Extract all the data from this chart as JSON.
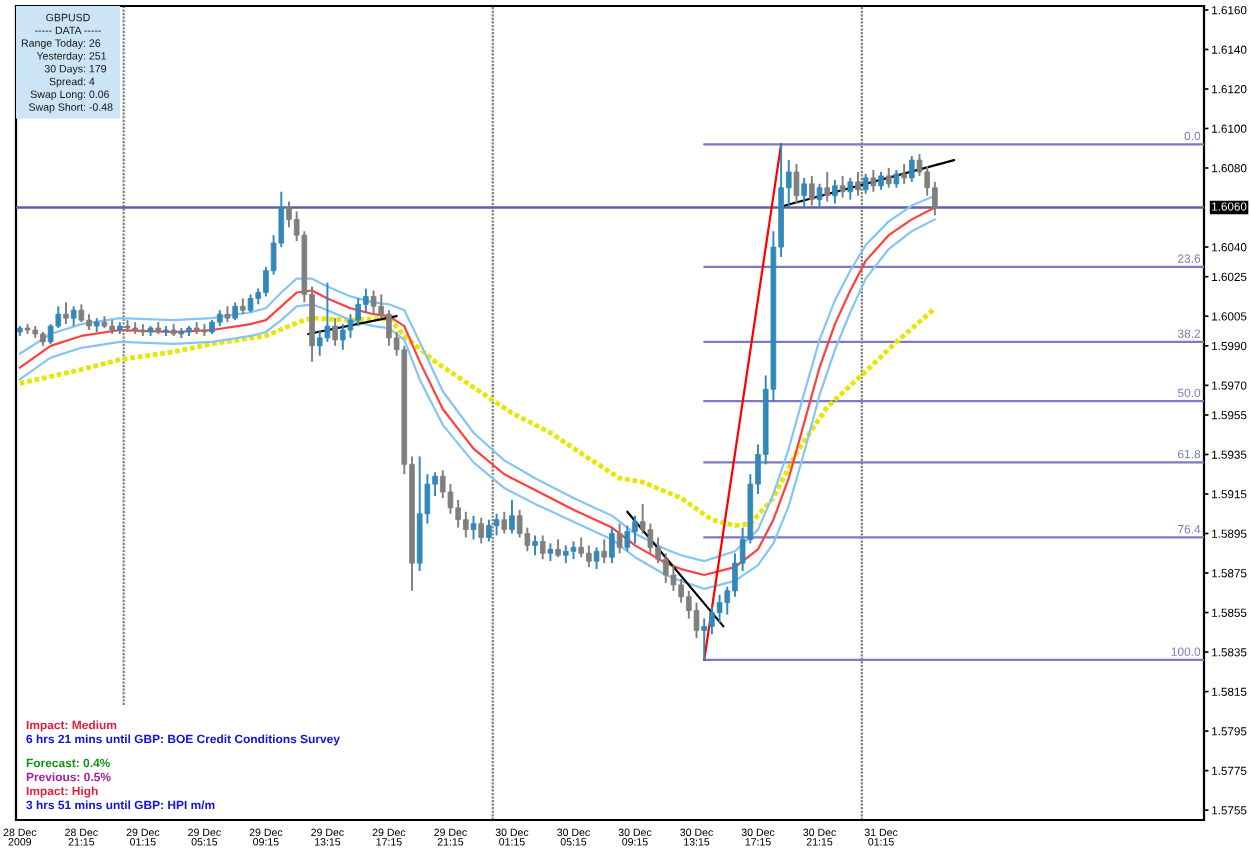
{
  "chart_data": {
    "type": "candlestick",
    "title": "GBPUSD",
    "annotations": [
      "----- DATA -----",
      "Range Today: 26",
      "Yesterday: 251",
      "30 Days: 179",
      "Spread: 4",
      "Swap Long: 0.06",
      "Swap Short: -0.48",
      "Impact: Medium",
      "6 hrs 21 mins until GBP: BOE Credit Conditions Survey",
      "Forecast: 0.4%",
      "Previous: 0.5%",
      "Impact: High",
      "3 hrs 51 mins until GBP: HPI m/m"
    ],
    "xlim": [
      "2009-12-28T17:00",
      "2009-12-31T22:15"
    ],
    "xticks": [
      {
        "value": "2009-12-28T17:15",
        "label": "28 Dec 2009"
      },
      {
        "value": "2009-12-28T21:15",
        "label": "28 Dec 21:15"
      },
      {
        "value": "2009-12-29T01:15",
        "label": "29 Dec 01:15"
      },
      {
        "value": "2009-12-29T05:15",
        "label": "29 Dec 05:15"
      },
      {
        "value": "2009-12-29T09:15",
        "label": "29 Dec 09:15"
      },
      {
        "value": "2009-12-29T13:15",
        "label": "29 Dec 13:15"
      },
      {
        "value": "2009-12-29T17:15",
        "label": "29 Dec 17:15"
      },
      {
        "value": "2009-12-29T21:15",
        "label": "29 Dec 21:15"
      },
      {
        "value": "2009-12-30T01:15",
        "label": "30 Dec 01:15"
      },
      {
        "value": "2009-12-30T05:15",
        "label": "30 Dec 05:15"
      },
      {
        "value": "2009-12-30T09:15",
        "label": "30 Dec 09:15"
      },
      {
        "value": "2009-12-30T13:15",
        "label": "30 Dec 13:15"
      },
      {
        "value": "2009-12-30T17:15",
        "label": "30 Dec 17:15"
      },
      {
        "value": "2009-12-30T21:15",
        "label": "30 Dec 21:15"
      },
      {
        "value": "2009-12-31T01:15",
        "label": "31 Dec 01:15"
      }
    ],
    "ylim": [
      1.575,
      1.6162
    ],
    "yticks": [
      {
        "value": 1.616,
        "label": "1.6160"
      },
      {
        "value": 1.614,
        "label": "1.6140"
      },
      {
        "value": 1.612,
        "label": "1.6120"
      },
      {
        "value": 1.61,
        "label": "1.6100"
      },
      {
        "value": 1.608,
        "label": "1.6080"
      },
      {
        "value": 1.604,
        "label": "1.6040"
      },
      1.6025,
      1.6005,
      {
        "value": 1.599,
        "label": "1.5990"
      },
      {
        "value": 1.597,
        "label": "1.5970"
      },
      1.5955,
      1.5935,
      1.5915,
      1.5895,
      1.5875,
      1.5855,
      1.5835,
      1.5815,
      1.5795,
      1.5775,
      1.5755
    ],
    "ref_lines": [
      {
        "axis": "y",
        "value": 1.606,
        "label": "1.6060",
        "color": "#60609c"
      },
      {
        "axis": "x",
        "value": "2009-12-29T00:00",
        "color": "#808080",
        "line_style": "dotted"
      },
      {
        "axis": "x",
        "value": "2009-12-30T00:00",
        "color": "#808080",
        "line_style": "dotted"
      },
      {
        "axis": "x",
        "value": "2009-12-31T00:00",
        "color": "#808080",
        "line_style": "dotted"
      }
    ],
    "x": [
      "2009-12-28T17:15",
      "2009-12-28T17:45",
      "2009-12-28T18:15",
      "2009-12-28T18:45",
      "2009-12-28T19:15",
      "2009-12-28T19:45",
      "2009-12-28T20:15",
      "2009-12-28T20:45",
      "2009-12-28T21:15",
      "2009-12-28T21:45",
      "2009-12-28T22:15",
      "2009-12-28T22:45",
      "2009-12-28T23:15",
      "2009-12-28T23:45",
      "2009-12-29T00:15",
      "2009-12-29T00:45",
      "2009-12-29T01:15",
      "2009-12-29T01:45",
      "2009-12-29T02:15",
      "2009-12-29T02:45",
      "2009-12-29T03:15",
      "2009-12-29T03:45",
      "2009-12-29T04:15",
      "2009-12-29T04:45",
      "2009-12-29T05:15",
      "2009-12-29T05:45",
      "2009-12-29T06:15",
      "2009-12-29T06:45",
      "2009-12-29T07:15",
      "2009-12-29T07:45",
      "2009-12-29T08:15",
      "2009-12-29T08:45",
      "2009-12-29T09:15",
      "2009-12-29T09:45",
      "2009-12-29T10:15",
      "2009-12-29T10:45",
      "2009-12-29T11:15",
      "2009-12-29T11:45",
      "2009-12-29T12:15",
      "2009-12-29T12:45",
      "2009-12-29T13:15",
      "2009-12-29T13:45",
      "2009-12-29T14:15",
      "2009-12-29T14:45",
      "2009-12-29T15:15",
      "2009-12-29T15:45",
      "2009-12-29T16:15",
      "2009-12-29T16:45",
      "2009-12-29T17:15",
      "2009-12-29T17:45",
      "2009-12-29T18:15",
      "2009-12-29T18:45",
      "2009-12-29T19:15",
      "2009-12-29T19:45",
      "2009-12-29T20:15",
      "2009-12-29T20:45",
      "2009-12-29T21:15",
      "2009-12-29T21:45",
      "2009-12-29T22:15",
      "2009-12-29T22:45",
      "2009-12-29T23:15",
      "2009-12-29T23:45",
      "2009-12-30T00:15",
      "2009-12-30T00:45",
      "2009-12-30T01:15",
      "2009-12-30T01:45",
      "2009-12-30T02:15",
      "2009-12-30T02:45",
      "2009-12-30T03:15",
      "2009-12-30T03:45",
      "2009-12-30T04:15",
      "2009-12-30T04:45",
      "2009-12-30T05:15",
      "2009-12-30T05:45",
      "2009-12-30T06:15",
      "2009-12-30T06:45",
      "2009-12-30T07:15",
      "2009-12-30T07:45",
      "2009-12-30T08:15",
      "2009-12-30T08:45",
      "2009-12-30T09:15",
      "2009-12-30T09:45",
      "2009-12-30T10:15",
      "2009-12-30T10:45",
      "2009-12-30T11:15",
      "2009-12-30T11:45",
      "2009-12-30T12:15",
      "2009-12-30T12:45",
      "2009-12-30T13:15",
      "2009-12-30T13:45",
      "2009-12-30T14:15",
      "2009-12-30T14:45",
      "2009-12-30T15:15",
      "2009-12-30T15:45",
      "2009-12-30T16:15",
      "2009-12-30T16:45",
      "2009-12-30T17:15",
      "2009-12-30T17:45",
      "2009-12-30T18:15",
      "2009-12-30T18:45",
      "2009-12-30T19:15",
      "2009-12-30T19:45",
      "2009-12-30T20:15",
      "2009-12-30T20:45",
      "2009-12-30T21:15",
      "2009-12-30T21:45",
      "2009-12-30T22:15",
      "2009-12-30T22:45",
      "2009-12-30T23:15",
      "2009-12-30T23:45",
      "2009-12-31T00:15",
      "2009-12-31T00:45",
      "2009-12-31T01:15",
      "2009-12-31T01:45",
      "2009-12-31T02:15",
      "2009-12-31T02:45",
      "2009-12-31T03:15",
      "2009-12-31T03:45",
      "2009-12-31T04:15",
      "2009-12-31T04:45"
    ],
    "ohlc": [
      [
        1.5997,
        1.6,
        1.5995,
        1.5999
      ],
      [
        1.5999,
        1.6001,
        1.5996,
        1.5998
      ],
      [
        1.5998,
        1.6,
        1.5994,
        1.5996
      ],
      [
        1.5996,
        1.5997,
        1.599,
        1.5992
      ],
      [
        1.5992,
        1.6001,
        1.5991,
        1.6
      ],
      [
        1.6,
        1.601,
        1.5999,
        1.6006
      ],
      [
        1.6006,
        1.6012,
        1.6001,
        1.6004
      ],
      [
        1.6004,
        1.601,
        1.6,
        1.6008
      ],
      [
        1.6008,
        1.6011,
        1.6002,
        1.6003
      ],
      [
        1.6003,
        1.6006,
        1.5998,
        1.6
      ],
      [
        1.6,
        1.6004,
        1.5997,
        1.6002
      ],
      [
        1.6002,
        1.6005,
        1.5999,
        1.6
      ],
      [
        1.6,
        1.6003,
        1.5996,
        1.5998
      ],
      [
        1.5998,
        1.6002,
        1.5996,
        1.6
      ],
      [
        1.6,
        1.6003,
        1.5997,
        1.5999
      ],
      [
        1.5999,
        1.6002,
        1.5996,
        1.5998
      ],
      [
        1.5998,
        1.6001,
        1.5995,
        1.5997
      ],
      [
        1.5997,
        1.6,
        1.5995,
        1.5999
      ],
      [
        1.5999,
        1.6002,
        1.5996,
        1.5997
      ],
      [
        1.5997,
        1.6,
        1.5995,
        1.5998
      ],
      [
        1.5998,
        1.6001,
        1.5995,
        1.5996
      ],
      [
        1.5996,
        1.5999,
        1.5994,
        1.5997
      ],
      [
        1.5997,
        1.6,
        1.5995,
        1.5999
      ],
      [
        1.5999,
        1.6002,
        1.5996,
        1.5998
      ],
      [
        1.5998,
        1.6001,
        1.5995,
        1.5997
      ],
      [
        1.5997,
        1.6003,
        1.5996,
        1.6002
      ],
      [
        1.6002,
        1.6008,
        1.6,
        1.6006
      ],
      [
        1.6006,
        1.601,
        1.6002,
        1.6004
      ],
      [
        1.6004,
        1.6012,
        1.6003,
        1.601
      ],
      [
        1.601,
        1.6014,
        1.6006,
        1.6008
      ],
      [
        1.6008,
        1.6016,
        1.6007,
        1.6014
      ],
      [
        1.6014,
        1.6019,
        1.6011,
        1.6017
      ],
      [
        1.6017,
        1.603,
        1.6015,
        1.6028
      ],
      [
        1.6028,
        1.6046,
        1.6026,
        1.6042
      ],
      [
        1.6042,
        1.6068,
        1.604,
        1.606
      ],
      [
        1.606,
        1.6063,
        1.605,
        1.6054
      ],
      [
        1.6054,
        1.6058,
        1.6043,
        1.6046
      ],
      [
        1.6046,
        1.6048,
        1.6012,
        1.6016
      ],
      [
        1.6016,
        1.602,
        1.5982,
        1.599
      ],
      [
        1.599,
        1.5998,
        1.5985,
        1.5994
      ],
      [
        1.5994,
        1.6022,
        1.5992,
        1.6
      ],
      [
        1.6,
        1.6004,
        1.599,
        1.5993
      ],
      [
        1.5993,
        1.6001,
        1.5988,
        1.5998
      ],
      [
        1.5998,
        1.6006,
        1.5994,
        1.6003
      ],
      [
        1.6003,
        1.6014,
        1.6,
        1.6011
      ],
      [
        1.6011,
        1.6019,
        1.6007,
        1.6015
      ],
      [
        1.6015,
        1.6018,
        1.6006,
        1.601
      ],
      [
        1.601,
        1.6016,
        1.6004,
        1.6006
      ],
      [
        1.6006,
        1.6008,
        1.599,
        1.5994
      ],
      [
        1.5994,
        1.5997,
        1.5985,
        1.5988
      ],
      [
        1.5988,
        1.599,
        1.5925,
        1.593
      ],
      [
        1.593,
        1.5934,
        1.5866,
        1.588
      ],
      [
        1.588,
        1.5934,
        1.5876,
        1.5905
      ],
      [
        1.5905,
        1.5925,
        1.59,
        1.592
      ],
      [
        1.592,
        1.5926,
        1.5914,
        1.5924
      ],
      [
        1.5924,
        1.5927,
        1.5913,
        1.5916
      ],
      [
        1.5916,
        1.592,
        1.5905,
        1.5908
      ],
      [
        1.5908,
        1.5912,
        1.5898,
        1.5902
      ],
      [
        1.5902,
        1.5906,
        1.5893,
        1.5897
      ],
      [
        1.5897,
        1.5904,
        1.5892,
        1.59
      ],
      [
        1.59,
        1.5903,
        1.589,
        1.5893
      ],
      [
        1.5893,
        1.5902,
        1.5891,
        1.5899
      ],
      [
        1.5899,
        1.5905,
        1.5894,
        1.5902
      ],
      [
        1.5902,
        1.5906,
        1.5895,
        1.5897
      ],
      [
        1.5897,
        1.5912,
        1.5895,
        1.5904
      ],
      [
        1.5904,
        1.5907,
        1.5893,
        1.5895
      ],
      [
        1.5895,
        1.5898,
        1.5886,
        1.5889
      ],
      [
        1.5889,
        1.5894,
        1.5884,
        1.5891
      ],
      [
        1.5891,
        1.5894,
        1.5882,
        1.5885
      ],
      [
        1.5885,
        1.589,
        1.5881,
        1.5887
      ],
      [
        1.5887,
        1.5892,
        1.5883,
        1.5884
      ],
      [
        1.5884,
        1.5889,
        1.588,
        1.5886
      ],
      [
        1.5886,
        1.5891,
        1.5882,
        1.5888
      ],
      [
        1.5888,
        1.5893,
        1.5883,
        1.5885
      ],
      [
        1.5885,
        1.5889,
        1.5878,
        1.5881
      ],
      [
        1.5881,
        1.5888,
        1.5877,
        1.5886
      ],
      [
        1.5886,
        1.5892,
        1.588,
        1.5883
      ],
      [
        1.5883,
        1.5898,
        1.588,
        1.5895
      ],
      [
        1.5895,
        1.59,
        1.5885,
        1.5888
      ],
      [
        1.5888,
        1.5899,
        1.5886,
        1.5896
      ],
      [
        1.5896,
        1.5904,
        1.589,
        1.5901
      ],
      [
        1.5901,
        1.591,
        1.5895,
        1.5897
      ],
      [
        1.5897,
        1.59,
        1.5885,
        1.5888
      ],
      [
        1.5888,
        1.5893,
        1.588,
        1.5882
      ],
      [
        1.5882,
        1.5885,
        1.587,
        1.5874
      ],
      [
        1.5874,
        1.5879,
        1.5866,
        1.5869
      ],
      [
        1.5869,
        1.5872,
        1.586,
        1.5863
      ],
      [
        1.5863,
        1.5866,
        1.5852,
        1.5856
      ],
      [
        1.5856,
        1.586,
        1.5842,
        1.5846
      ],
      [
        1.5846,
        1.5852,
        1.5831,
        1.5848
      ],
      [
        1.5848,
        1.5858,
        1.5844,
        1.5855
      ],
      [
        1.5855,
        1.5864,
        1.585,
        1.586
      ],
      [
        1.586,
        1.5868,
        1.5854,
        1.5866
      ],
      [
        1.5866,
        1.5885,
        1.5863,
        1.588
      ],
      [
        1.588,
        1.5898,
        1.5876,
        1.5892
      ],
      [
        1.5892,
        1.5925,
        1.589,
        1.592
      ],
      [
        1.592,
        1.594,
        1.5915,
        1.5935
      ],
      [
        1.5935,
        1.5975,
        1.593,
        1.5968
      ],
      [
        1.5968,
        1.6048,
        1.5962,
        1.604
      ],
      [
        1.604,
        1.6092,
        1.6035,
        1.607
      ],
      [
        1.607,
        1.6084,
        1.606,
        1.6078
      ],
      [
        1.6078,
        1.6082,
        1.6062,
        1.6066
      ],
      [
        1.6066,
        1.6075,
        1.606,
        1.6072
      ],
      [
        1.6072,
        1.6076,
        1.6061,
        1.6064
      ],
      [
        1.6064,
        1.6072,
        1.606,
        1.607
      ],
      [
        1.607,
        1.6078,
        1.6063,
        1.6066
      ],
      [
        1.6066,
        1.6074,
        1.6062,
        1.6071
      ],
      [
        1.6071,
        1.6076,
        1.6065,
        1.6068
      ],
      [
        1.6068,
        1.6075,
        1.6064,
        1.6073
      ],
      [
        1.6073,
        1.6078,
        1.6066,
        1.6069
      ],
      [
        1.6069,
        1.6077,
        1.6067,
        1.6075
      ],
      [
        1.6075,
        1.6079,
        1.6068,
        1.6071
      ],
      [
        1.6071,
        1.6078,
        1.6069,
        1.6076
      ],
      [
        1.6076,
        1.608,
        1.607,
        1.6072
      ],
      [
        1.6072,
        1.6079,
        1.607,
        1.6077
      ],
      [
        1.6077,
        1.6082,
        1.6072,
        1.6075
      ],
      [
        1.6075,
        1.6086,
        1.6073,
        1.6084
      ],
      [
        1.6084,
        1.6087,
        1.6076,
        1.6078
      ],
      [
        1.6078,
        1.6081,
        1.6066,
        1.607
      ],
      [
        1.607,
        1.6073,
        1.6056,
        1.606
      ]
    ],
    "colors": [
      "#3288b8",
      "#7f7f7f",
      "#7f7f7f",
      "#7f7f7f",
      "#3288b8",
      "#3288b8",
      "#7f7f7f",
      "#3288b8",
      "#7f7f7f",
      "#7f7f7f",
      "#3288b8",
      "#7f7f7f",
      "#7f7f7f",
      "#3288b8",
      "#7f7f7f",
      "#7f7f7f",
      "#7f7f7f",
      "#3288b8",
      "#7f7f7f",
      "#3288b8",
      "#7f7f7f",
      "#3288b8",
      "#3288b8",
      "#7f7f7f",
      "#7f7f7f",
      "#3288b8",
      "#3288b8",
      "#7f7f7f",
      "#3288b8",
      "#7f7f7f",
      "#3288b8",
      "#3288b8",
      "#3288b8",
      "#3288b8",
      "#3288b8",
      "#7f7f7f",
      "#7f7f7f",
      "#7f7f7f",
      "#7f7f7f",
      "#3288b8",
      "#3288b8",
      "#7f7f7f",
      "#3288b8",
      "#3288b8",
      "#3288b8",
      "#3288b8",
      "#7f7f7f",
      "#7f7f7f",
      "#7f7f7f",
      "#7f7f7f",
      "#7f7f7f",
      "#7f7f7f",
      "#3288b8",
      "#3288b8",
      "#3288b8",
      "#7f7f7f",
      "#7f7f7f",
      "#7f7f7f",
      "#7f7f7f",
      "#3288b8",
      "#7f7f7f",
      "#3288b8",
      "#3288b8",
      "#7f7f7f",
      "#3288b8",
      "#7f7f7f",
      "#7f7f7f",
      "#3288b8",
      "#7f7f7f",
      "#3288b8",
      "#7f7f7f",
      "#3288b8",
      "#3288b8",
      "#7f7f7f",
      "#7f7f7f",
      "#3288b8",
      "#7f7f7f",
      "#3288b8",
      "#7f7f7f",
      "#3288b8",
      "#3288b8",
      "#7f7f7f",
      "#7f7f7f",
      "#7f7f7f",
      "#7f7f7f",
      "#7f7f7f",
      "#7f7f7f",
      "#7f7f7f",
      "#7f7f7f",
      "#3288b8",
      "#3288b8",
      "#3288b8",
      "#3288b8",
      "#3288b8",
      "#3288b8",
      "#3288b8",
      "#3288b8",
      "#3288b8",
      "#3288b8",
      "#3288b8",
      "#3288b8",
      "#7f7f7f",
      "#3288b8",
      "#7f7f7f",
      "#3288b8",
      "#7f7f7f",
      "#3288b8",
      "#7f7f7f",
      "#3288b8",
      "#7f7f7f",
      "#3288b8",
      "#7f7f7f",
      "#3288b8",
      "#7f7f7f",
      "#3288b8",
      "#7f7f7f",
      "#3288b8",
      "#7f7f7f",
      "#7f7f7f",
      "#7f7f7f"
    ],
    "series": [
      {
        "type": "line",
        "name": "0.0",
        "x": [
          "2009-12-30T13:45",
          "2009-12-31T22:15"
        ],
        "values": [
          1.6092,
          1.6092
        ],
        "color": "#7b7bbd"
      },
      {
        "type": "line",
        "name": "23.6",
        "x": [
          "2009-12-30T13:45",
          "2009-12-31T22:15"
        ],
        "values": [
          1.603,
          1.603
        ],
        "color": "#7b7bbd"
      },
      {
        "type": "line",
        "name": "38.2",
        "x": [
          "2009-12-30T13:45",
          "2009-12-31T22:15"
        ],
        "values": [
          1.5992,
          1.5992
        ],
        "color": "#7b7bbd"
      },
      {
        "type": "line",
        "name": "50.0",
        "x": [
          "2009-12-30T13:45",
          "2009-12-31T22:15"
        ],
        "values": [
          1.5962,
          1.5962
        ],
        "color": "#7b7bbd"
      },
      {
        "type": "line",
        "name": "61.8",
        "x": [
          "2009-12-30T13:45",
          "2009-12-31T22:15"
        ],
        "values": [
          1.5931,
          1.5931
        ],
        "color": "#7b7bbd"
      },
      {
        "type": "line",
        "name": "76.4",
        "x": [
          "2009-12-30T13:45",
          "2009-12-31T22:15"
        ],
        "values": [
          1.5893,
          1.5893
        ],
        "color": "#7b7bbd"
      },
      {
        "type": "line",
        "name": "100.0",
        "x": [
          "2009-12-30T13:45",
          "2009-12-31T22:15"
        ],
        "values": [
          1.5831,
          1.5831
        ],
        "color": "#7b7bbd"
      },
      {
        "type": "line",
        "x": [
          "2009-12-28T17:15",
          "2009-12-28T21:15",
          "2009-12-28T23:45",
          "2009-12-29T03:15",
          "2009-12-29T05:45",
          "2009-12-29T09:15",
          "2009-12-29T10:45",
          "2009-12-29T11:45",
          "2009-12-29T12:15",
          "2009-12-29T14:45",
          "2009-12-29T17:15",
          "2009-12-29T18:15",
          "2009-12-29T20:15",
          "2009-12-29T22:45",
          "2009-12-30T01:15",
          "2009-12-30T03:45",
          "2009-12-30T06:15",
          "2009-12-30T08:15",
          "2009-12-30T09:45",
          "2009-12-30T12:15",
          "2009-12-30T14:15",
          "2009-12-30T15:45",
          "2009-12-30T16:45",
          "2009-12-30T18:15",
          "2009-12-30T19:45",
          "2009-12-30T21:45",
          "2009-12-31T00:15",
          "2009-12-31T02:15",
          "2009-12-31T04:45"
        ],
        "values": [
          1.5971,
          1.5978,
          1.5983,
          1.5987,
          1.5991,
          1.5995,
          1.6,
          1.6003,
          1.6004,
          1.6003,
          1.6004,
          1.5995,
          1.5982,
          1.5969,
          1.5956,
          1.5946,
          1.5933,
          1.5923,
          1.5921,
          1.5913,
          1.5902,
          1.5899,
          1.59,
          1.5913,
          1.5936,
          1.5959,
          1.5977,
          1.5992,
          1.6009
        ],
        "color": "#e6e600",
        "line_style": "dotted"
      },
      {
        "type": "line",
        "x": [
          "2009-12-28T17:15",
          "2009-12-28T19:15",
          "2009-12-28T21:15",
          "2009-12-28T23:45",
          "2009-12-29T03:15",
          "2009-12-29T05:45",
          "2009-12-29T08:15",
          "2009-12-29T09:15",
          "2009-12-29T10:15",
          "2009-12-29T11:15",
          "2009-12-29T12:15",
          "2009-12-29T13:15",
          "2009-12-29T14:45",
          "2009-12-29T16:15",
          "2009-12-29T17:15",
          "2009-12-29T18:15",
          "2009-12-29T19:15",
          "2009-12-29T20:45",
          "2009-12-29T22:45",
          "2009-12-30T00:45",
          "2009-12-30T02:45",
          "2009-12-30T05:15",
          "2009-12-30T07:45",
          "2009-12-30T09:15",
          "2009-12-30T11:15",
          "2009-12-30T12:15",
          "2009-12-30T13:45",
          "2009-12-30T15:45",
          "2009-12-30T17:15",
          "2009-12-30T18:15",
          "2009-12-30T19:15",
          "2009-12-30T20:15",
          "2009-12-30T21:15",
          "2009-12-30T22:15",
          "2009-12-30T23:15",
          "2009-12-31T00:15",
          "2009-12-31T01:45",
          "2009-12-31T03:15",
          "2009-12-31T04:45"
        ],
        "values": [
          1.5986,
          1.5996,
          1.6001,
          1.6004,
          1.6003,
          1.6004,
          1.6007,
          1.6009,
          1.6017,
          1.6024,
          1.6024,
          1.602,
          1.6015,
          1.6012,
          1.6011,
          1.6008,
          1.5992,
          1.5967,
          1.5946,
          1.5932,
          1.5923,
          1.5913,
          1.5904,
          1.5895,
          1.5887,
          1.5884,
          1.5881,
          1.5886,
          1.5897,
          1.5915,
          1.5938,
          1.5966,
          1.5993,
          1.6013,
          1.6028,
          1.6041,
          1.6053,
          1.6061,
          1.6066
        ],
        "color": "#86c5f2"
      },
      {
        "type": "line",
        "x": [
          "2009-12-28T17:15",
          "2009-12-28T19:15",
          "2009-12-28T21:15",
          "2009-12-28T23:45",
          "2009-12-29T03:15",
          "2009-12-29T05:45",
          "2009-12-29T08:15",
          "2009-12-29T09:15",
          "2009-12-29T10:15",
          "2009-12-29T11:15",
          "2009-12-29T12:15",
          "2009-12-29T13:15",
          "2009-12-29T14:45",
          "2009-12-29T16:15",
          "2009-12-29T17:15",
          "2009-12-29T18:15",
          "2009-12-29T19:15",
          "2009-12-29T20:45",
          "2009-12-29T22:45",
          "2009-12-30T00:45",
          "2009-12-30T02:45",
          "2009-12-30T05:15",
          "2009-12-30T07:45",
          "2009-12-30T09:15",
          "2009-12-30T11:15",
          "2009-12-30T12:15",
          "2009-12-30T13:45",
          "2009-12-30T15:45",
          "2009-12-30T17:15",
          "2009-12-30T18:15",
          "2009-12-30T19:15",
          "2009-12-30T20:15",
          "2009-12-30T21:15",
          "2009-12-30T22:15",
          "2009-12-30T23:15",
          "2009-12-31T00:15",
          "2009-12-31T01:45",
          "2009-12-31T03:15",
          "2009-12-31T04:45"
        ],
        "values": [
          1.5973,
          1.5984,
          1.5989,
          1.5992,
          1.5991,
          1.5992,
          1.5995,
          1.5997,
          1.6003,
          1.601,
          1.6011,
          1.6008,
          1.6003,
          1.6,
          1.5999,
          1.5993,
          1.5973,
          1.595,
          1.5931,
          1.5918,
          1.591,
          1.5901,
          1.5892,
          1.5883,
          1.5874,
          1.5871,
          1.5867,
          1.5871,
          1.5879,
          1.589,
          1.5909,
          1.5936,
          1.5965,
          1.5988,
          1.6007,
          1.6024,
          1.6039,
          1.6048,
          1.6054
        ],
        "color": "#86c5f2"
      },
      {
        "type": "line",
        "x": [
          "2009-12-28T17:15",
          "2009-12-28T19:15",
          "2009-12-28T21:15",
          "2009-12-28T23:45",
          "2009-12-29T03:15",
          "2009-12-29T05:45",
          "2009-12-29T08:15",
          "2009-12-29T09:15",
          "2009-12-29T10:15",
          "2009-12-29T11:15",
          "2009-12-29T12:15",
          "2009-12-29T13:15",
          "2009-12-29T14:45",
          "2009-12-29T16:15",
          "2009-12-29T17:15",
          "2009-12-29T18:15",
          "2009-12-29T19:15",
          "2009-12-29T20:45",
          "2009-12-29T22:45",
          "2009-12-30T00:45",
          "2009-12-30T02:45",
          "2009-12-30T05:15",
          "2009-12-30T07:45",
          "2009-12-30T09:15",
          "2009-12-30T11:15",
          "2009-12-30T12:15",
          "2009-12-30T13:45",
          "2009-12-30T15:45",
          "2009-12-30T17:15",
          "2009-12-30T18:15",
          "2009-12-30T19:15",
          "2009-12-30T20:15",
          "2009-12-30T21:15",
          "2009-12-30T22:15",
          "2009-12-30T23:15",
          "2009-12-31T00:15",
          "2009-12-31T01:45",
          "2009-12-31T03:15",
          "2009-12-31T04:45"
        ],
        "values": [
          1.5979,
          1.599,
          1.5995,
          1.5998,
          1.5997,
          1.5998,
          1.6001,
          1.6003,
          1.601,
          1.6017,
          1.6018,
          1.6014,
          1.6009,
          1.6006,
          1.6005,
          1.6,
          1.5982,
          1.5958,
          1.5938,
          1.5925,
          1.5917,
          1.5907,
          1.5898,
          1.5889,
          1.588,
          1.5877,
          1.5874,
          1.5878,
          1.5887,
          1.5902,
          1.5923,
          1.5951,
          1.5979,
          1.6001,
          1.6018,
          1.6033,
          1.6046,
          1.6054,
          1.606
        ],
        "color": "#ff4040"
      },
      {
        "type": "line",
        "x": [
          "2009-12-30T13:45",
          "2009-12-30T18:45"
        ],
        "values": [
          1.5831,
          1.6092
        ],
        "color": "#ff0000"
      },
      {
        "type": "line",
        "x": [
          "2009-12-29T12:00",
          "2009-12-29T17:45"
        ],
        "values": [
          1.5996,
          1.6005
        ],
        "color": "#000000"
      },
      {
        "type": "line",
        "x": [
          "2009-12-30T08:45",
          "2009-12-30T15:00"
        ],
        "values": [
          1.5906,
          1.5848
        ],
        "color": "#000000"
      },
      {
        "type": "line",
        "x": [
          "2009-12-30T19:00",
          "2009-12-31T06:00"
        ],
        "values": [
          1.6061,
          1.6084
        ],
        "color": "#000000"
      }
    ]
  }
}
